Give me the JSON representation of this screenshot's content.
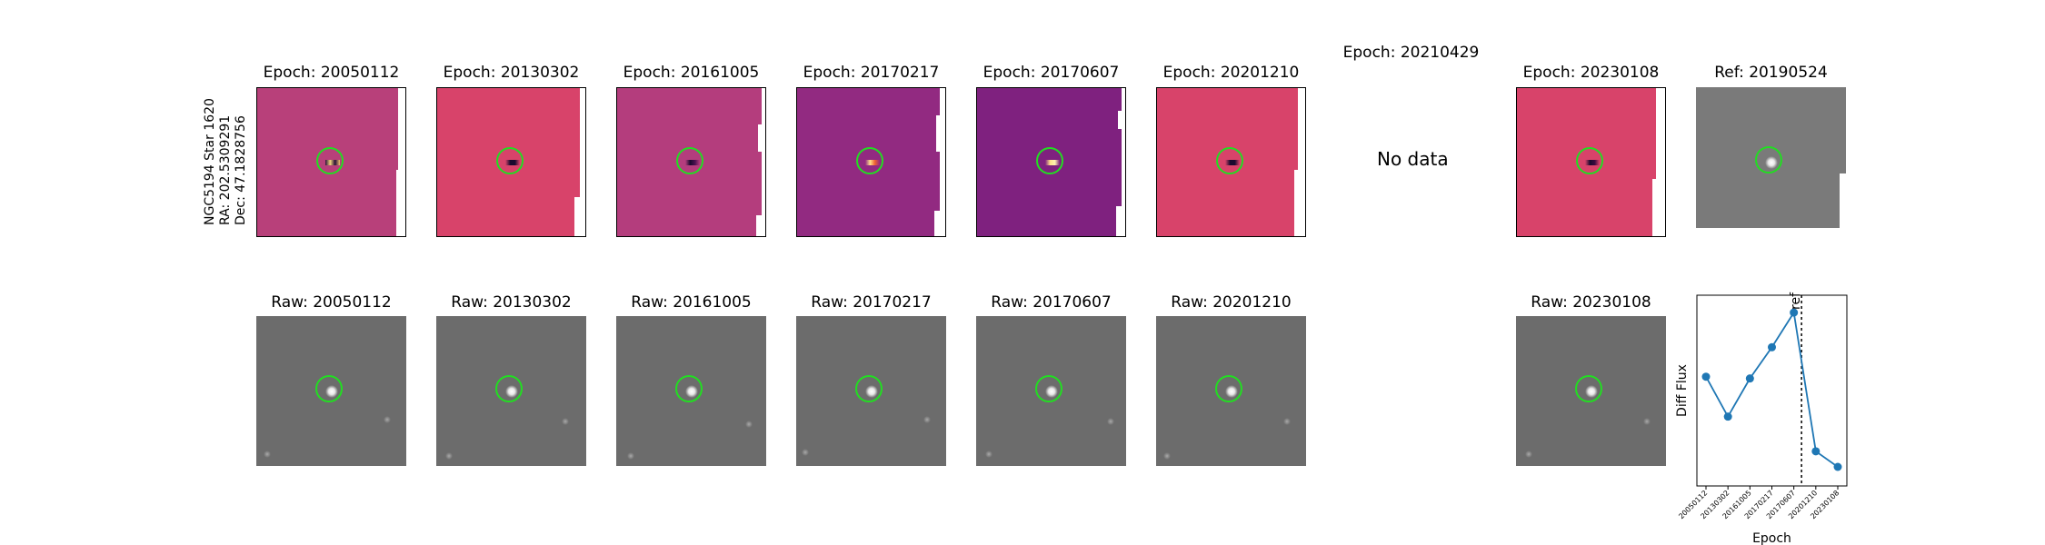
{
  "figure": {
    "side_label": [
      "NGC5194 Star 1620",
      "RA: 202.5309291",
      "Dec: 47.1828756"
    ],
    "no_data_text": "No data"
  },
  "diff_panels": [
    {
      "title": "Epoch: 20050112",
      "bg": "#b8407a"
    },
    {
      "title": "Epoch: 20130302",
      "bg": "#d8436a"
    },
    {
      "title": "Epoch: 20161005",
      "bg": "#b43d7d"
    },
    {
      "title": "Epoch: 20170217",
      "bg": "#922a81"
    },
    {
      "title": "Epoch: 20170607",
      "bg": "#7f217f"
    },
    {
      "title": "Epoch: 20201210",
      "bg": "#d8436a"
    },
    {
      "title": "Epoch: 20210429",
      "bg": ""
    },
    {
      "title": "Epoch: 20230108",
      "bg": "#d8436a"
    },
    {
      "title": "Ref: 20190524",
      "bg": "#7a7a7a"
    }
  ],
  "raw_panels": [
    {
      "title": "Raw: 20050112"
    },
    {
      "title": "Raw: 20130302"
    },
    {
      "title": "Raw: 20161005"
    },
    {
      "title": "Raw: 20170217"
    },
    {
      "title": "Raw: 20170607"
    },
    {
      "title": "Raw: 20201210"
    },
    {
      "title": "Raw: 20230108"
    }
  ],
  "colors": {
    "circle": "#22dd22",
    "line": "#1f77b4",
    "raw_bg": "#6c6c6c"
  },
  "chart_data": {
    "type": "line",
    "title": "",
    "xlabel": "Epoch",
    "ylabel": "Diff Flux",
    "categories": [
      "20050112",
      "20130302",
      "20161005",
      "20170217",
      "20170607",
      "20201210",
      "20230108"
    ],
    "values": [
      0.63,
      0.4,
      0.62,
      0.8,
      1.0,
      0.2,
      0.11
    ],
    "ylim": [
      0,
      1.1
    ],
    "ref_line": {
      "label": "ref",
      "position_between": [
        "20170607",
        "20201210"
      ],
      "fraction": 0.35
    },
    "grid": false,
    "y_ticks_shown": false
  }
}
